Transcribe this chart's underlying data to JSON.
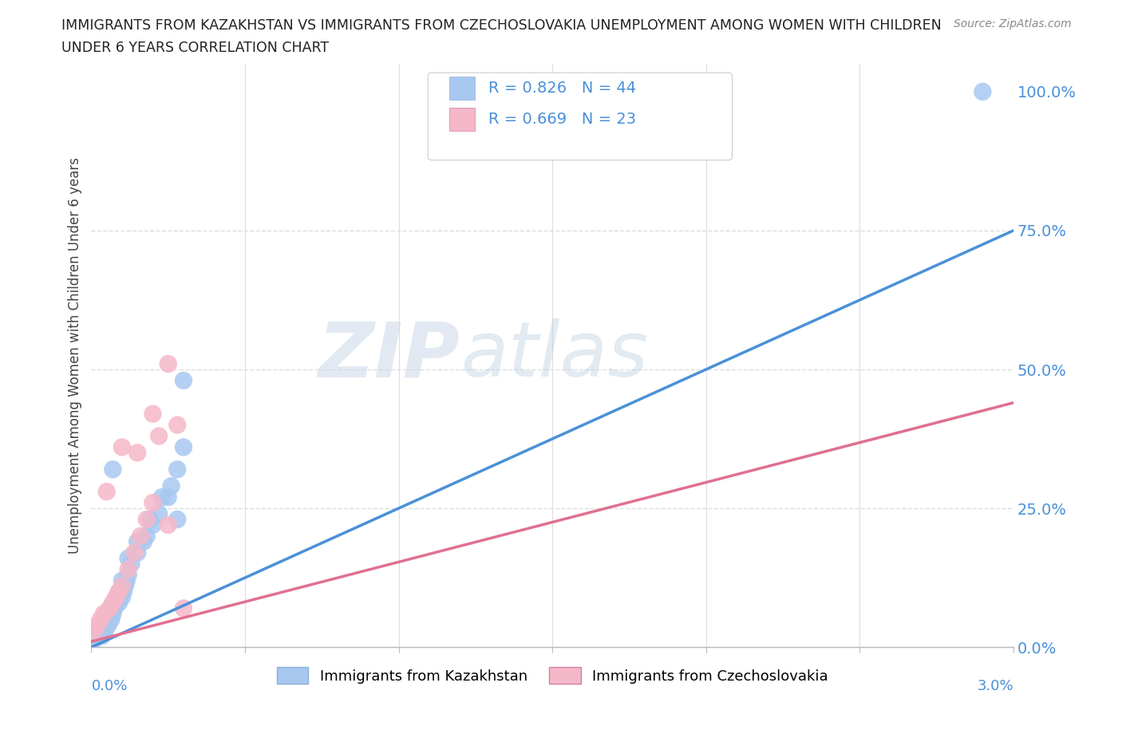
{
  "title_line1": "IMMIGRANTS FROM KAZAKHSTAN VS IMMIGRANTS FROM CZECHOSLOVAKIA UNEMPLOYMENT AMONG WOMEN WITH CHILDREN",
  "title_line2": "UNDER 6 YEARS CORRELATION CHART",
  "source": "Source: ZipAtlas.com",
  "ylabel": "Unemployment Among Women with Children Under 6 years",
  "legend_label1": "Immigrants from Kazakhstan",
  "legend_label2": "Immigrants from Czechoslovakia",
  "R1": 0.826,
  "N1": 44,
  "R2": 0.669,
  "N2": 23,
  "color1": "#a8c8f0",
  "color1_line": "#4a90d9",
  "color2": "#f5b8c8",
  "color2_line": "#e07090",
  "ytick_labels": [
    "0.0%",
    "25.0%",
    "50.0%",
    "75.0%",
    "100.0%"
  ],
  "ytick_values": [
    0.0,
    0.25,
    0.5,
    0.75,
    1.0
  ],
  "background_color": "#ffffff",
  "grid_color": "#dddddd",
  "watermark1": "ZIP",
  "watermark2": "atlas",
  "kaz_x": [
    5e-05,
    0.0001,
    0.00015,
    0.0002,
    0.00025,
    0.0003,
    0.00035,
    0.0004,
    0.00045,
    0.0005,
    0.00055,
    0.0006,
    0.00065,
    0.0007,
    0.00075,
    0.0008,
    0.00085,
    0.0009,
    0.00095,
    0.001,
    0.00105,
    0.0011,
    0.00115,
    0.0012,
    0.0013,
    0.0015,
    0.0017,
    0.002,
    0.0022,
    0.0025,
    0.0026,
    0.0028,
    0.003,
    0.003,
    0.0018,
    0.001,
    0.0007,
    0.0009,
    0.0012,
    0.0015,
    0.0019,
    0.0023,
    0.0028,
    0.029
  ],
  "kaz_y": [
    0.01,
    0.015,
    0.02,
    0.025,
    0.03,
    0.04,
    0.02,
    0.05,
    0.03,
    0.06,
    0.04,
    0.07,
    0.05,
    0.06,
    0.07,
    0.08,
    0.09,
    0.08,
    0.1,
    0.09,
    0.1,
    0.11,
    0.12,
    0.13,
    0.15,
    0.17,
    0.19,
    0.22,
    0.24,
    0.27,
    0.29,
    0.32,
    0.36,
    0.48,
    0.2,
    0.12,
    0.32,
    0.1,
    0.16,
    0.19,
    0.23,
    0.27,
    0.23,
    1.0
  ],
  "czech_x": [
    0.0001,
    0.0002,
    0.0003,
    0.0004,
    0.0005,
    0.0006,
    0.0007,
    0.0008,
    0.0009,
    0.001,
    0.0012,
    0.0014,
    0.0016,
    0.0018,
    0.002,
    0.0022,
    0.0025,
    0.0028,
    0.003,
    0.0015,
    0.001,
    0.002,
    0.0025
  ],
  "czech_y": [
    0.03,
    0.04,
    0.05,
    0.06,
    0.28,
    0.07,
    0.08,
    0.09,
    0.1,
    0.11,
    0.14,
    0.17,
    0.2,
    0.23,
    0.26,
    0.38,
    0.22,
    0.4,
    0.07,
    0.35,
    0.36,
    0.42,
    0.51
  ]
}
